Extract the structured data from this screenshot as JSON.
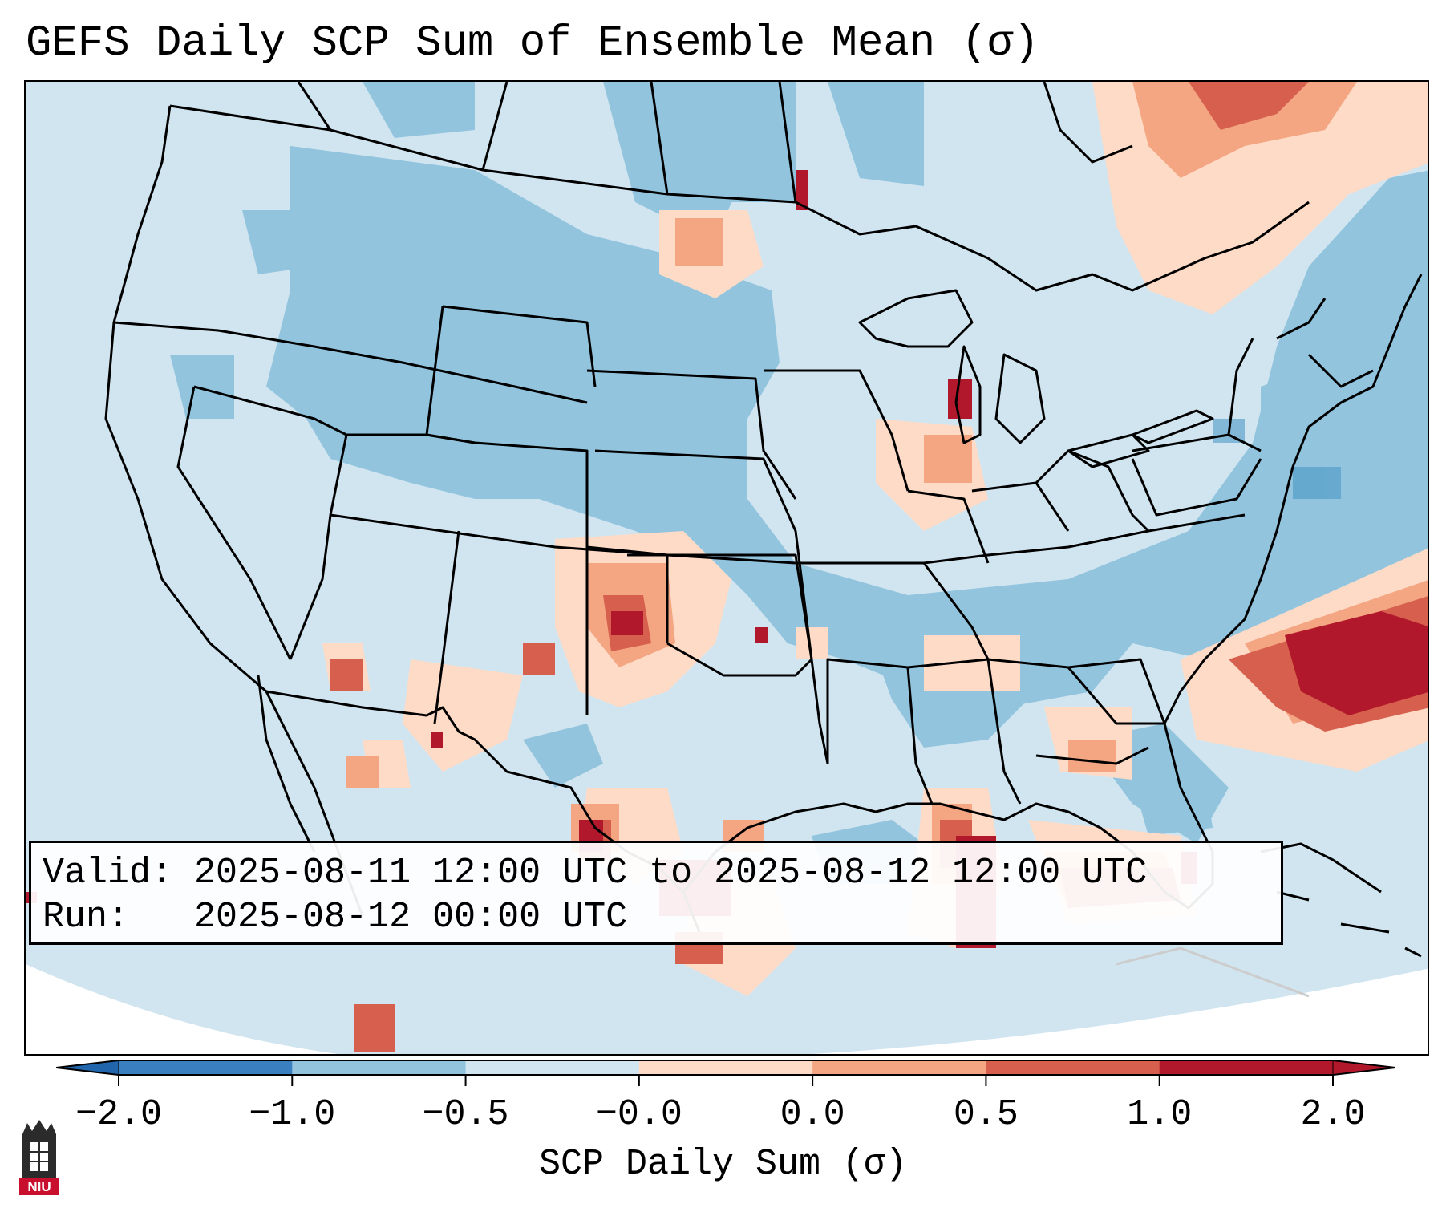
{
  "title": "GEFS Daily SCP Sum of Ensemble Mean (σ)",
  "info": {
    "valid": "Valid: 2025-08-11 12:00 UTC to 2025-08-12 12:00 UTC",
    "run": "Run:   2025-08-12 00:00 UTC"
  },
  "colorbar": {
    "label": "SCP Daily Sum (σ)",
    "ticks": [
      "−2.0",
      "−1.0",
      "−0.5",
      "−0.0",
      "0.0",
      "0.5",
      "1.0",
      "2.0"
    ],
    "colors": [
      "#3a7fc0",
      "#92c4de",
      "#d1e5f0",
      "#fddbc7",
      "#f4a582",
      "#d6604d",
      "#b2182b"
    ]
  },
  "palette": {
    "very_negative": "#4393c3",
    "negative": "#92c4de",
    "slightly_negative": "#d1e5f0",
    "slightly_positive": "#fddbc7",
    "positive": "#f4a582",
    "high": "#d6604d",
    "very_high": "#b2182b"
  },
  "logo": {
    "text": "NIU"
  }
}
